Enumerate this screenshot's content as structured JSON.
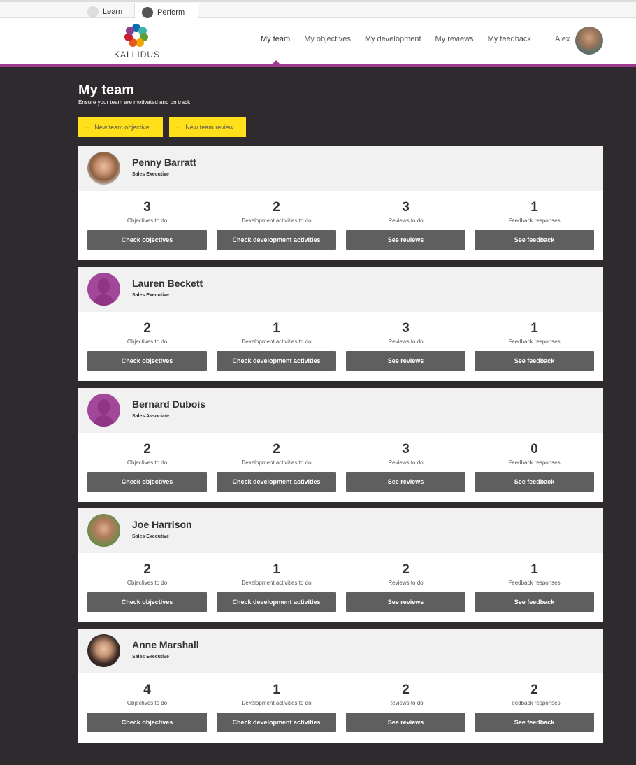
{
  "app_tabs": [
    {
      "label": "Learn"
    },
    {
      "label": "Perform"
    }
  ],
  "brand": "KALLIDUS",
  "nav": [
    "My team",
    "My objectives",
    "My development",
    "My reviews",
    "My feedback"
  ],
  "user": "Alex",
  "page": {
    "title": "My team",
    "subtitle": "Ensure your team are motivated and on track"
  },
  "actions": {
    "new_objective": "New team objective",
    "new_review": "New team review",
    "plus": "+"
  },
  "labels": {
    "objectives": "Objectives to do",
    "development": "Development activities to do",
    "reviews": "Reviews to do",
    "feedback": "Feedback responses"
  },
  "buttons": {
    "objectives": "Check objectives",
    "development": "Check development activities",
    "reviews": "See reviews",
    "feedback": "See feedback"
  },
  "colors": {
    "accent": "#9c3a8d",
    "button_yellow": "#ffe01b",
    "background": "#2e2a2d"
  },
  "team": [
    {
      "name": "Penny Barratt",
      "role": "Sales Executive",
      "avatar": "photo",
      "objectives": "3",
      "development": "2",
      "reviews": "3",
      "feedback": "1"
    },
    {
      "name": "Lauren Beckett",
      "role": "Sales Executive",
      "avatar": "placeholder",
      "objectives": "2",
      "development": "1",
      "reviews": "3",
      "feedback": "1"
    },
    {
      "name": "Bernard Dubois",
      "role": "Sales Associate",
      "avatar": "placeholder",
      "objectives": "2",
      "development": "2",
      "reviews": "3",
      "feedback": "0"
    },
    {
      "name": "Joe Harrison",
      "role": "Sales Executive",
      "avatar": "photo",
      "objectives": "2",
      "development": "1",
      "reviews": "2",
      "feedback": "1"
    },
    {
      "name": "Anne Marshall",
      "role": "Sales Executive",
      "avatar": "photo",
      "objectives": "4",
      "development": "1",
      "reviews": "2",
      "feedback": "2"
    }
  ]
}
